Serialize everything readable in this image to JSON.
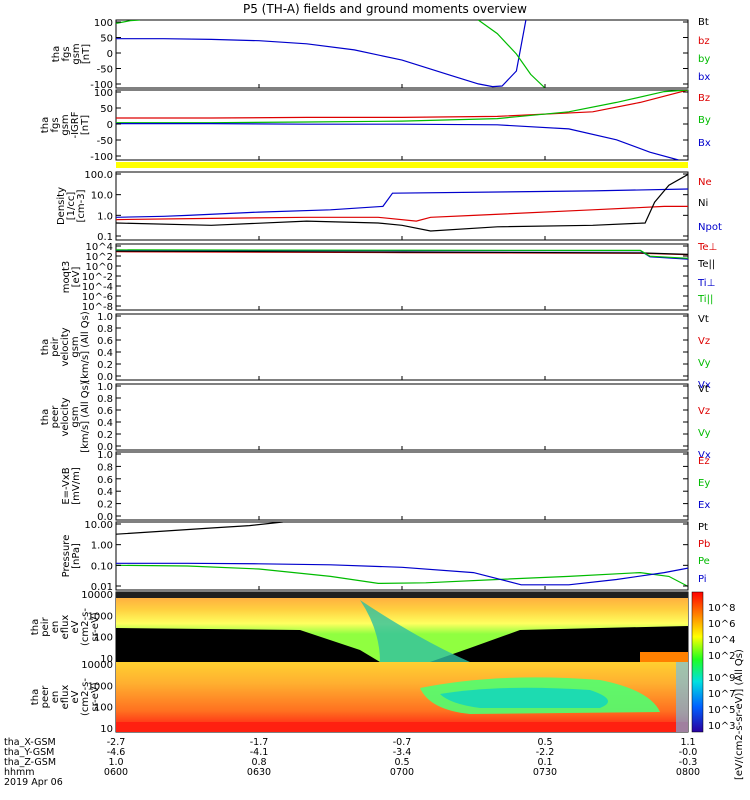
{
  "title": "P5 (TH-A) fields and ground moments overview",
  "time_axis": {
    "start_label": "0600",
    "end_label": "0800",
    "tick_labels": [
      "0600",
      "0630",
      "0700",
      "0730",
      "0800"
    ],
    "date": "2019 Apr 06"
  },
  "ephemeris": {
    "row_labels": [
      "tha_X-GSM",
      "tha_Y-GSM",
      "tha_Z-GSM",
      "hhmm"
    ],
    "x_gsm": [
      "-2.7",
      "-1.7",
      "-0.7",
      "0.5",
      "1.1"
    ],
    "y_gsm": [
      "-4.6",
      "-4.1",
      "-3.4",
      "-2.2",
      "-0.0"
    ],
    "z_gsm": [
      "1.0",
      "0.8",
      "0.5",
      "0.1",
      "-0.3"
    ]
  },
  "colors": {
    "black": "#000000",
    "red": "#dd0000",
    "green": "#00bb00",
    "blue": "#0000cc",
    "flag_yellow": "#ffff00"
  },
  "spectrogram_colorbar": {
    "unit_label": "[eV/(cm2-s-sr-eV)] (All Qs)",
    "ion_ticks": [
      "10^8",
      "10^6",
      "10^4",
      "10^2"
    ],
    "electron_ticks": [
      "10^9",
      "10^7",
      "10^5",
      "10^3"
    ]
  },
  "chart_data": [
    {
      "type": "line",
      "name": "fgs_gsm",
      "ylabel": [
        "tha",
        "fgs",
        "gsm",
        "[nT]"
      ],
      "ylim": [
        -100,
        100
      ],
      "yticks": [
        "100",
        "50",
        "0",
        "-50",
        "-100"
      ],
      "legend": [
        "Bt",
        "bz",
        "by",
        "bx"
      ],
      "series": [
        {
          "name": "bx",
          "color": "blue",
          "t": [
            0,
            10,
            20,
            30,
            40,
            50,
            60,
            70,
            76,
            79,
            81,
            84,
            86
          ],
          "y": [
            45,
            45,
            43,
            39,
            30,
            12,
            -18,
            -62,
            -88,
            -96,
            -94,
            -50,
            100
          ]
        },
        {
          "name": "by",
          "color": "green",
          "t": [
            0,
            3,
            5
          ],
          "y": [
            90,
            98,
            100
          ]
        },
        {
          "name": "by_late",
          "color": "green",
          "t": [
            76,
            80,
            84,
            87,
            90
          ],
          "y": [
            100,
            60,
            0,
            -60,
            -100
          ]
        }
      ]
    },
    {
      "type": "line",
      "name": "fgs_gsm_igrf",
      "ylabel": [
        "tha",
        "fgs",
        "gsm",
        "-IGRF",
        "[nT]"
      ],
      "ylim": [
        -125,
        100
      ],
      "yticks": [
        "100",
        "50",
        "0",
        "-50",
        "-100"
      ],
      "legend": [
        "Bz",
        "By",
        "Bx"
      ],
      "series": [
        {
          "name": "Bz",
          "color": "red",
          "t": [
            0,
            20,
            40,
            60,
            80,
            100,
            110,
            120
          ],
          "y": [
            10,
            10,
            12,
            12,
            15,
            30,
            60,
            100
          ]
        },
        {
          "name": "By",
          "color": "green",
          "t": [
            0,
            20,
            40,
            60,
            80,
            95,
            105,
            115,
            120
          ],
          "y": [
            -5,
            -5,
            -3,
            0,
            8,
            30,
            60,
            95,
            100
          ]
        },
        {
          "name": "Bx",
          "color": "blue",
          "t": [
            0,
            20,
            40,
            60,
            80,
            95,
            105,
            112,
            118
          ],
          "y": [
            -8,
            -8,
            -10,
            -10,
            -12,
            -25,
            -60,
            -100,
            -125
          ]
        }
      ]
    },
    {
      "type": "line",
      "name": "density",
      "yscale": "log",
      "ylabel": [
        "Density",
        "[1/cc]",
        "[cm-3]"
      ],
      "ylim": [
        0.05,
        200
      ],
      "yticks": [
        "100.0",
        "10.0",
        "1.0",
        "0.1"
      ],
      "legend": [
        "Ne",
        "Ni",
        "Npot"
      ],
      "series": [
        {
          "name": "Ne",
          "color": "red",
          "t": [
            0,
            20,
            40,
            55,
            63,
            66,
            75,
            100,
            115,
            120
          ],
          "y": [
            0.6,
            0.7,
            0.8,
            0.8,
            0.5,
            0.8,
            1.0,
            2.0,
            3.0,
            3.0
          ]
        },
        {
          "name": "Npot",
          "color": "blue",
          "t": [
            0,
            10,
            15,
            30,
            45,
            56,
            58,
            100,
            120
          ],
          "y": [
            0.8,
            0.9,
            1.0,
            1.5,
            2.0,
            3.0,
            15,
            20,
            25
          ]
        },
        {
          "name": "Ni",
          "color": "black",
          "t": [
            0,
            20,
            40,
            55,
            60,
            66,
            80,
            100,
            111,
            113,
            116,
            120
          ],
          "y": [
            0.4,
            0.3,
            0.5,
            0.4,
            0.3,
            0.15,
            0.25,
            0.3,
            0.4,
            5,
            40,
            150
          ]
        }
      ]
    },
    {
      "type": "line",
      "name": "temperature",
      "yscale": "log",
      "ylabel": [
        "moqt3",
        "[eV]"
      ],
      "ylim": [
        1e-08,
        100000
      ],
      "yticks": [
        "10^4",
        "10^2",
        "10^0",
        "10^-2",
        "10^-4",
        "10^-6",
        "10^-8"
      ],
      "legend": [
        "Te⊥",
        "Te||",
        "Ti⊥",
        "Ti||"
      ],
      "series": [
        {
          "name": "Te⊥",
          "color": "red",
          "t": [
            0,
            60,
            110,
            120
          ],
          "y": [
            3000,
            2000,
            1500,
            800
          ]
        },
        {
          "name": "Te||",
          "color": "black",
          "t": [
            0,
            60,
            110,
            120
          ],
          "y": [
            4000,
            2500,
            1800,
            900
          ]
        },
        {
          "name": "Ti⊥",
          "color": "blue",
          "t": [
            0,
            60,
            110,
            112,
            120
          ],
          "y": [
            6000,
            5000,
            5000,
            300,
            100
          ]
        },
        {
          "name": "Ti||",
          "color": "green",
          "t": [
            0,
            60,
            110,
            112,
            120
          ],
          "y": [
            7000,
            6000,
            5500,
            400,
            150
          ]
        }
      ]
    },
    {
      "type": "line",
      "name": "peir_velocity",
      "ylabel": [
        "tha",
        "peir",
        "velocity",
        "gsm",
        "[km/s] (All Qs)"
      ],
      "ylim": [
        0,
        1
      ],
      "yticks": [
        "1.0",
        "0.8",
        "0.6",
        "0.4",
        "0.2",
        "0.0"
      ],
      "legend": [
        "Vt",
        "Vz",
        "Vy",
        "Vx"
      ],
      "series": []
    },
    {
      "type": "line",
      "name": "peer_velocity",
      "ylabel": [
        "tha",
        "peer",
        "velocity",
        "gsm",
        "[km/s] (All Qs)"
      ],
      "ylim": [
        0,
        1
      ],
      "yticks": [
        "1.0",
        "0.8",
        "0.6",
        "0.4",
        "0.2",
        "0.0"
      ],
      "legend": [
        "Vt",
        "Vz",
        "Vy",
        "Vx"
      ],
      "series": []
    },
    {
      "type": "line",
      "name": "efield",
      "ylabel": [
        "E=-VxB",
        "[mV/m]"
      ],
      "ylim": [
        0,
        1
      ],
      "yticks": [
        "1.0",
        "0.8",
        "0.6",
        "0.4",
        "0.2",
        "0.0"
      ],
      "legend": [
        "Ez",
        "Ey",
        "Ex"
      ],
      "series": []
    },
    {
      "type": "line",
      "name": "pressure",
      "yscale": "log",
      "ylabel": [
        "Pressure",
        "[nPa]"
      ],
      "ylim": [
        0.005,
        40
      ],
      "yticks": [
        "10.00",
        "1.00",
        "0.10",
        "0.01"
      ],
      "legend": [
        "Pt",
        "Pb",
        "Pe",
        "Pi"
      ],
      "series": [
        {
          "name": "Pt",
          "color": "black",
          "t": [
            0,
            10,
            20,
            28,
            35
          ],
          "y": [
            8,
            12,
            18,
            25,
            40
          ]
        },
        {
          "name": "Pe",
          "color": "green",
          "t": [
            0,
            15,
            30,
            45,
            55,
            65,
            80,
            95,
            110,
            116,
            120
          ],
          "y": [
            0.13,
            0.12,
            0.08,
            0.03,
            0.012,
            0.013,
            0.02,
            0.03,
            0.05,
            0.03,
            0.008
          ]
        },
        {
          "name": "Pi",
          "color": "blue",
          "t": [
            0,
            15,
            30,
            45,
            60,
            75,
            85,
            95,
            105,
            115,
            120
          ],
          "y": [
            0.17,
            0.17,
            0.16,
            0.14,
            0.1,
            0.05,
            0.01,
            0.01,
            0.02,
            0.05,
            0.09
          ]
        }
      ]
    },
    {
      "type": "heatmap",
      "name": "peir_en_eflux",
      "yscale": "log",
      "ylabel": [
        "tha",
        "peir",
        "en",
        "eflux",
        "eV",
        "(cm2-s-",
        "sr-eV)"
      ],
      "ylim": [
        7,
        20000
      ],
      "yticks": [
        "10000",
        "1000",
        "100",
        "10"
      ]
    },
    {
      "type": "heatmap",
      "name": "peer_en_eflux",
      "yscale": "log",
      "ylabel": [
        "tha",
        "peer",
        "en",
        "eflux",
        "eV",
        "(cm2-s-",
        "sr-eV)"
      ],
      "ylim": [
        7,
        20000
      ],
      "yticks": [
        "10000",
        "1000",
        "100",
        "10"
      ]
    }
  ]
}
